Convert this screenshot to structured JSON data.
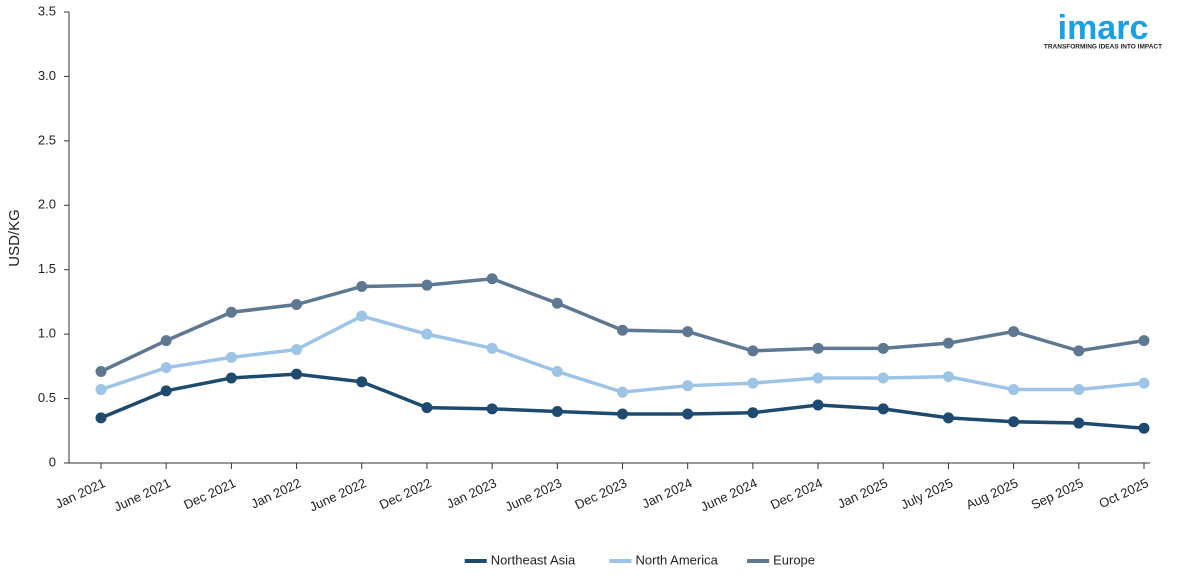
{
  "logo": {
    "name": "imarc",
    "tagline": "TRANSFORMING IDEAS INTO IMPACT"
  },
  "chart_data": {
    "type": "line",
    "y_label": "USD/KG",
    "categories": [
      "Jan 2021",
      "June 2021",
      "Dec 2021",
      "Jan 2022",
      "June 2022",
      "Dec 2022",
      "Jan 2023",
      "June 2023",
      "Dec 2023",
      "Jan 2024",
      "June 2024",
      "Dec 2024",
      "Jan 2025",
      "July 2025",
      "Aug 2025",
      "Sep 2025",
      "Oct 2025"
    ],
    "series": [
      {
        "name": "Northeast Asia",
        "color": "#1f4a70",
        "values": [
          0.35,
          0.56,
          0.66,
          0.69,
          0.63,
          0.43,
          0.42,
          0.4,
          0.38,
          0.38,
          0.39,
          0.45,
          0.42,
          0.35,
          0.32,
          0.31,
          0.27
        ]
      },
      {
        "name": "North America",
        "color": "#9dc3e6",
        "values": [
          0.57,
          0.74,
          0.82,
          0.88,
          1.14,
          1.0,
          0.89,
          0.71,
          0.55,
          0.6,
          0.62,
          0.66,
          0.66,
          0.67,
          0.57,
          0.57,
          0.62
        ]
      },
      {
        "name": "Europe",
        "color": "#5e7891",
        "values": [
          0.71,
          0.95,
          1.17,
          1.23,
          1.37,
          1.38,
          1.43,
          1.24,
          1.03,
          1.02,
          0.87,
          0.89,
          0.89,
          0.93,
          1.02,
          0.87,
          0.95
        ]
      }
    ],
    "ylim": [
      0,
      3.5
    ],
    "yticks": [
      0,
      0.5,
      {
        "value": 1,
        "label": "1.0"
      },
      1.5,
      {
        "value": 2,
        "label": "2.0"
      },
      2.5,
      {
        "value": 3,
        "label": "3.0"
      },
      3.5
    ],
    "grid": false,
    "legend": "bottom"
  }
}
